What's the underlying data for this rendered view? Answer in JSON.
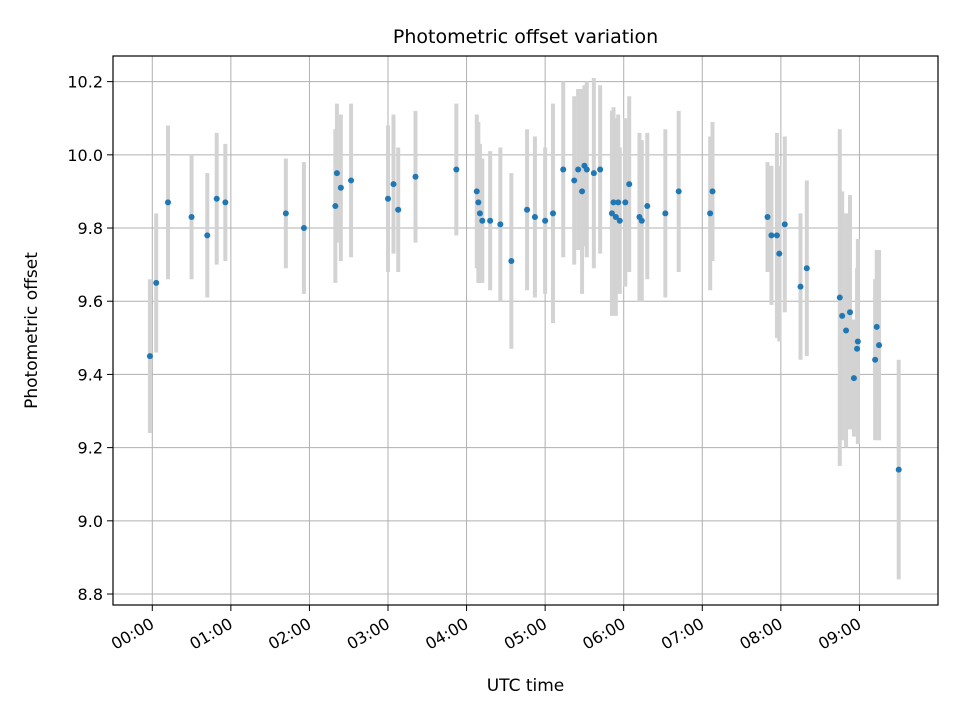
{
  "chart_data": {
    "type": "scatter",
    "title": "Photometric offset variation",
    "xlabel": "UTC time",
    "ylabel": "Photometric offset",
    "x_unit": "hours UTC",
    "xlim": [
      -0.5,
      10.0
    ],
    "ylim": [
      8.77,
      10.27
    ],
    "x_ticks": [
      0,
      1,
      2,
      3,
      4,
      5,
      6,
      7,
      8,
      9
    ],
    "x_tick_labels": [
      "00:00",
      "01:00",
      "02:00",
      "03:00",
      "04:00",
      "05:00",
      "06:00",
      "07:00",
      "08:00",
      "09:00"
    ],
    "y_ticks": [
      8.8,
      9.0,
      9.2,
      9.4,
      9.6,
      9.8,
      10.0,
      10.2
    ],
    "y_tick_labels": [
      "8.8",
      "9.0",
      "9.2",
      "9.4",
      "9.6",
      "9.8",
      "10.0",
      "10.2"
    ],
    "grid": true,
    "colors": {
      "point": "#1f77b4",
      "errorbar": "#d3d3d3",
      "grid": "#b0b0b0"
    },
    "series": [
      {
        "x": [
          -0.03,
          0.05,
          0.2,
          0.5,
          0.7,
          0.82,
          0.93,
          1.7,
          1.93,
          2.33,
          2.35,
          2.4,
          2.53,
          3.0,
          3.07,
          3.13,
          3.35,
          3.87,
          4.13,
          4.15,
          4.17,
          4.2,
          4.3,
          4.43,
          4.57,
          4.77,
          4.87,
          5.0,
          5.1,
          5.23,
          5.37,
          5.42,
          5.47,
          5.5,
          5.53,
          5.62,
          5.7,
          5.85,
          5.87,
          5.9,
          5.93,
          5.95,
          6.02,
          6.07,
          6.2,
          6.23,
          6.3,
          6.53,
          6.7,
          7.1,
          7.13,
          7.83,
          7.88,
          7.95,
          7.98,
          8.05,
          8.25,
          8.33,
          8.75,
          8.78,
          8.83,
          8.88,
          8.93,
          8.97,
          8.98,
          9.2,
          9.22,
          9.25,
          9.5
        ],
        "y": [
          9.45,
          9.65,
          9.87,
          9.83,
          9.78,
          9.88,
          9.87,
          9.84,
          9.8,
          9.86,
          9.95,
          9.91,
          9.93,
          9.88,
          9.92,
          9.85,
          9.94,
          9.96,
          9.9,
          9.87,
          9.84,
          9.82,
          9.82,
          9.81,
          9.71,
          9.85,
          9.83,
          9.82,
          9.84,
          9.96,
          9.93,
          9.96,
          9.9,
          9.97,
          9.96,
          9.95,
          9.96,
          9.84,
          9.87,
          9.83,
          9.87,
          9.82,
          9.87,
          9.92,
          9.83,
          9.82,
          9.86,
          9.84,
          9.9,
          9.84,
          9.9,
          9.83,
          9.78,
          9.78,
          9.73,
          9.81,
          9.64,
          9.69,
          9.61,
          9.56,
          9.52,
          9.57,
          9.39,
          9.47,
          9.49,
          9.44,
          9.53,
          9.48,
          9.14
        ],
        "yerr": [
          0.21,
          0.19,
          0.21,
          0.17,
          0.17,
          0.18,
          0.16,
          0.15,
          0.18,
          0.21,
          0.19,
          0.2,
          0.21,
          0.2,
          0.19,
          0.17,
          0.18,
          0.18,
          0.21,
          0.22,
          0.19,
          0.17,
          0.19,
          0.21,
          0.24,
          0.22,
          0.22,
          0.2,
          0.3,
          0.24,
          0.23,
          0.22,
          0.28,
          0.22,
          0.24,
          0.26,
          0.23,
          0.28,
          0.26,
          0.27,
          0.24,
          0.2,
          0.23,
          0.24,
          0.23,
          0.22,
          0.2,
          0.23,
          0.22,
          0.21,
          0.19,
          0.15,
          0.19,
          0.28,
          0.24,
          0.24,
          0.2,
          0.24,
          0.46,
          0.34,
          0.32,
          0.32,
          0.16,
          0.22,
          0.28,
          0.22,
          0.21,
          0.26,
          0.3
        ]
      }
    ]
  }
}
